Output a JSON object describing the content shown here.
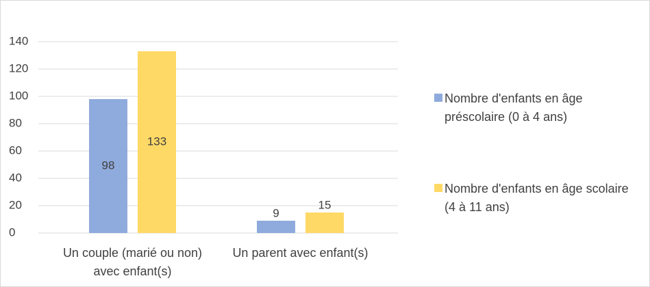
{
  "chart_data": {
    "type": "bar",
    "categories": [
      "Un couple (marié ou non) avec enfant(s)",
      "Un parent avec enfant(s)"
    ],
    "series": [
      {
        "name": "Nombre d'enfants en âge préscolaire (0 à 4 ans)",
        "color": "#8faadc",
        "values": [
          98,
          9
        ]
      },
      {
        "name": "Nombre d'enfants en âge scolaire (4 à 11 ans)",
        "color": "#ffd966",
        "values": [
          133,
          15
        ]
      }
    ],
    "ylim": [
      0,
      140
    ],
    "yticks": [
      0,
      20,
      40,
      60,
      80,
      100,
      120,
      140
    ],
    "grid": true,
    "legend": "right"
  }
}
